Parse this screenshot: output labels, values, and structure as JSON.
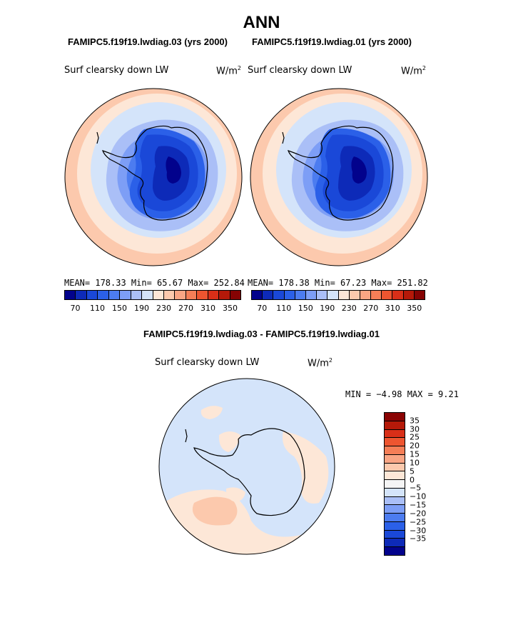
{
  "title": "ANN",
  "panels": [
    {
      "case_title": "FAMIPC5.f19f19.lwdiag.03 (yrs 2000)",
      "variable": "Surf clearsky down LW",
      "units_base": "W/m",
      "units_exp": "2",
      "stats": "MEAN= 178.33  Min=  65.67  Max= 252.84"
    },
    {
      "case_title": "FAMIPC5.f19f19.lwdiag.01 (yrs 2000)",
      "variable": "Surf clearsky down LW",
      "units_base": "W/m",
      "units_exp": "2",
      "stats": "MEAN= 178.38  Min=  67.23  Max= 251.82"
    }
  ],
  "abs_colorbar": {
    "colors": [
      "#02028c",
      "#0d2ab8",
      "#1a48d8",
      "#2b60e8",
      "#4c7cf0",
      "#7d9ef6",
      "#aabff7",
      "#d4e4fa",
      "#fde7d7",
      "#fcc9ad",
      "#f9a584",
      "#f57e57",
      "#ee5530",
      "#d92f18",
      "#b51909",
      "#850303"
    ],
    "labels": [
      "70",
      "110",
      "150",
      "190",
      "230",
      "270",
      "310",
      "350"
    ]
  },
  "difference": {
    "title": "FAMIPC5.f19f19.lwdiag.03 - FAMIPC5.f19f19.lwdiag.01",
    "variable": "Surf clearsky down LW",
    "units_base": "W/m",
    "units_exp": "2",
    "minmax": "MIN =  −4.98 MAX =   9.21",
    "colorbar": {
      "colors_top_to_bottom": [
        "#8a0303",
        "#b51909",
        "#d92f18",
        "#ee5530",
        "#f57e57",
        "#f9a584",
        "#fcc9ad",
        "#fde7d7",
        "#f5f5f5",
        "#d4e4fa",
        "#aabff7",
        "#7d9ef6",
        "#4c7cf0",
        "#2b60e8",
        "#1a48d8",
        "#0d2ab8",
        "#02028c"
      ],
      "labels": [
        "35",
        "30",
        "25",
        "20",
        "15",
        "10",
        "5",
        "0",
        "−5",
        "−10",
        "−15",
        "−20",
        "−25",
        "−30",
        "−35"
      ]
    }
  }
}
